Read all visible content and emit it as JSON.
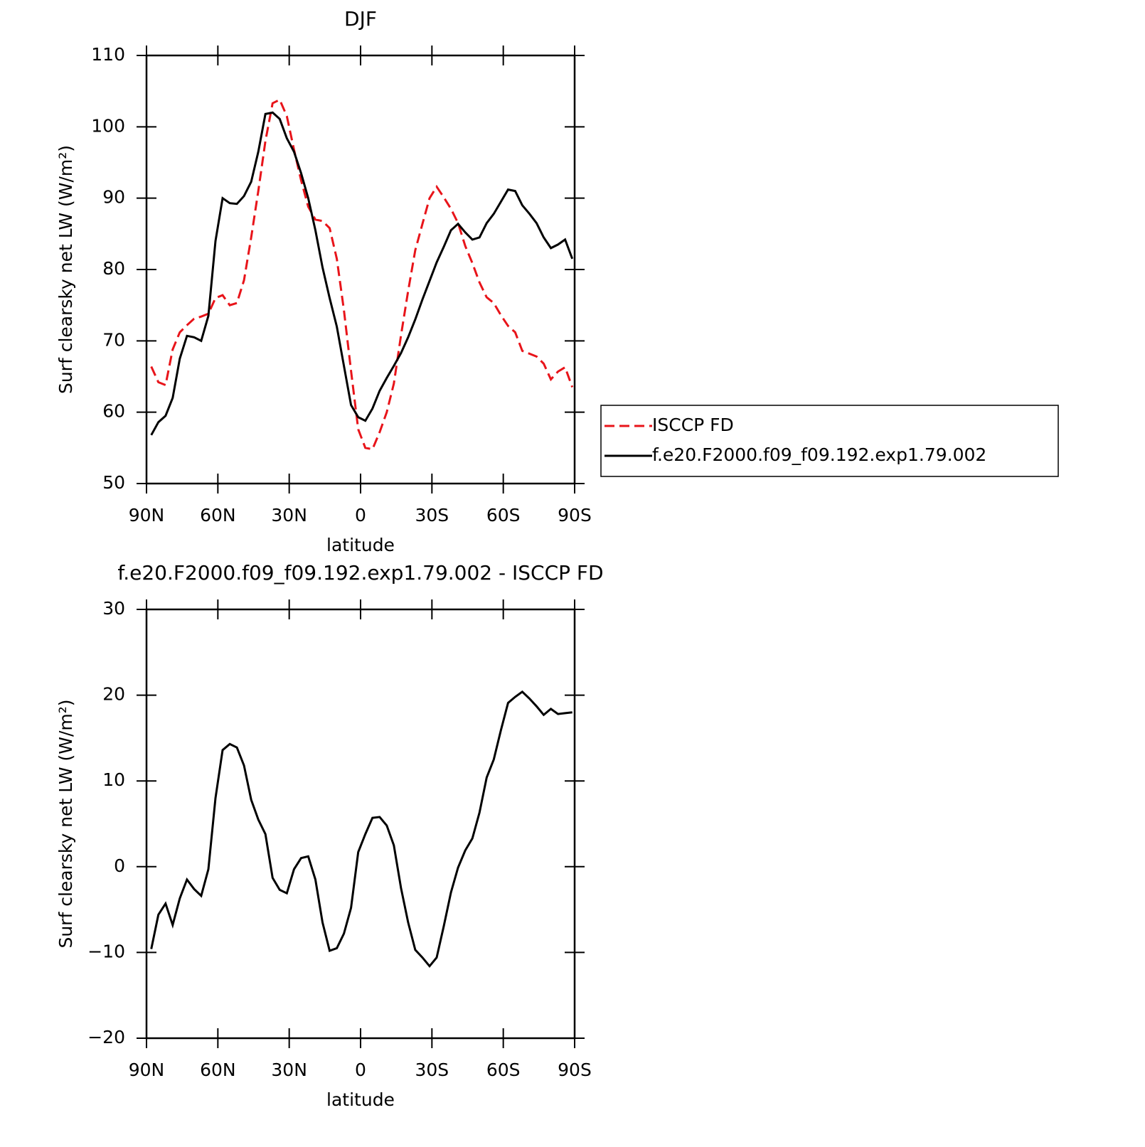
{
  "chart_data": [
    {
      "type": "line",
      "title": "DJF",
      "xlabel": "latitude",
      "ylabel": "Surf clearsky net LW (W/m²)",
      "x": [
        88,
        85,
        82,
        79,
        76,
        73,
        70,
        67,
        64,
        61,
        58,
        55,
        52,
        49,
        46,
        43,
        40,
        37,
        34,
        31,
        28,
        25,
        22,
        19,
        16,
        13,
        10,
        7,
        4,
        1,
        -2,
        -5,
        -8,
        -11,
        -14,
        -17,
        -20,
        -23,
        -26,
        -29,
        -32,
        -35,
        -38,
        -41,
        -44,
        -47,
        -50,
        -53,
        -56,
        -59,
        -62,
        -65,
        -68,
        -71,
        -74,
        -77,
        -80,
        -83,
        -86,
        -89
      ],
      "xlim": [
        90,
        -90
      ],
      "xticks": [
        {
          "value": 90,
          "label": "90N"
        },
        {
          "value": 60,
          "label": "60N"
        },
        {
          "value": 30,
          "label": "30N"
        },
        0,
        {
          "value": -30,
          "label": "30S"
        },
        {
          "value": -60,
          "label": "60S"
        },
        {
          "value": -90,
          "label": "90S"
        }
      ],
      "ylim": [
        50,
        110
      ],
      "yticks": [
        50,
        60,
        70,
        80,
        90,
        100,
        110
      ],
      "legend": "right",
      "series": [
        {
          "name": "ISCCP FD",
          "color": "#e8141a",
          "dash": true,
          "values": [
            66.4,
            64.2,
            63.8,
            68.8,
            71.2,
            72.2,
            73.1,
            73.4,
            73.8,
            76,
            76.4,
            75,
            75.3,
            78.5,
            84.5,
            91,
            98,
            103.3,
            103.8,
            101.5,
            96.8,
            92.5,
            88.8,
            87,
            86.8,
            85.8,
            81.5,
            74.3,
            65.8,
            57.6,
            55,
            54.8,
            57.2,
            60,
            64,
            70.8,
            77,
            82.7,
            86.4,
            90,
            91.6,
            90.1,
            88.5,
            86.5,
            83.3,
            80.9,
            78.2,
            76.1,
            75.3,
            73.6,
            72.1,
            71.2,
            68.6,
            68.2,
            67.8,
            66.8,
            64.6,
            65.7,
            66.3,
            63.5
          ]
        },
        {
          "name": "f.e20.F2000.f09_f09.192.exp1.79.002",
          "color": "#000000",
          "dash": false,
          "values": [
            56.8,
            58.6,
            59.5,
            62,
            67.5,
            70.7,
            70.5,
            70,
            73.5,
            84,
            90,
            89.3,
            89.2,
            90.3,
            92.3,
            96.5,
            101.8,
            102,
            101.1,
            98.4,
            96.5,
            93.5,
            90,
            85.5,
            80.3,
            76,
            72,
            66.5,
            61,
            59.3,
            58.8,
            60.5,
            63,
            64.8,
            66.5,
            68.3,
            70.5,
            73,
            75.8,
            78.4,
            81,
            83.2,
            85.5,
            86.4,
            85.2,
            84.2,
            84.5,
            86.5,
            87.8,
            89.5,
            91.2,
            91,
            89,
            87.8,
            86.5,
            84.5,
            83,
            83.5,
            84.2,
            81.5
          ]
        }
      ]
    },
    {
      "type": "line",
      "title": "f.e20.F2000.f09_f09.192.exp1.79.002 - ISCCP FD",
      "xlabel": "latitude",
      "ylabel": "Surf clearsky net LW (W/m²)",
      "x": [
        88,
        85,
        82,
        79,
        76,
        73,
        70,
        67,
        64,
        61,
        58,
        55,
        52,
        49,
        46,
        43,
        40,
        37,
        34,
        31,
        28,
        25,
        22,
        19,
        16,
        13,
        10,
        7,
        4,
        1,
        -2,
        -5,
        -8,
        -11,
        -14,
        -17,
        -20,
        -23,
        -26,
        -29,
        -32,
        -35,
        -38,
        -41,
        -44,
        -47,
        -50,
        -53,
        -56,
        -59,
        -62,
        -65,
        -68,
        -71,
        -74,
        -77,
        -80,
        -83,
        -86,
        -89
      ],
      "xlim": [
        90,
        -90
      ],
      "xticks": [
        {
          "value": 90,
          "label": "90N"
        },
        {
          "value": 60,
          "label": "60N"
        },
        {
          "value": 30,
          "label": "30N"
        },
        0,
        {
          "value": -30,
          "label": "30S"
        },
        {
          "value": -60,
          "label": "60S"
        },
        {
          "value": -90,
          "label": "90S"
        }
      ],
      "ylim": [
        -20,
        30
      ],
      "yticks": [
        {
          "value": -20,
          "label": "−20"
        },
        {
          "value": -10,
          "label": "−10"
        },
        0,
        10,
        20,
        30
      ],
      "series": [
        {
          "color": "#000000",
          "dash": false,
          "values": [
            -9.6,
            -5.6,
            -4.3,
            -6.8,
            -3.7,
            -1.5,
            -2.6,
            -3.4,
            -0.3,
            8,
            13.6,
            14.3,
            13.9,
            11.8,
            7.8,
            5.5,
            3.8,
            -1.3,
            -2.7,
            -3.1,
            -0.3,
            1,
            1.2,
            -1.5,
            -6.5,
            -9.8,
            -9.5,
            -7.8,
            -4.8,
            1.7,
            3.8,
            5.7,
            5.8,
            4.8,
            2.5,
            -2.5,
            -6.5,
            -9.7,
            -10.6,
            -11.6,
            -10.6,
            -6.9,
            -3,
            -0.1,
            1.9,
            3.3,
            6.3,
            10.4,
            12.5,
            15.9,
            19.1,
            19.8,
            20.4,
            19.6,
            18.7,
            17.7,
            18.4,
            17.8,
            17.9,
            18
          ]
        }
      ]
    }
  ]
}
